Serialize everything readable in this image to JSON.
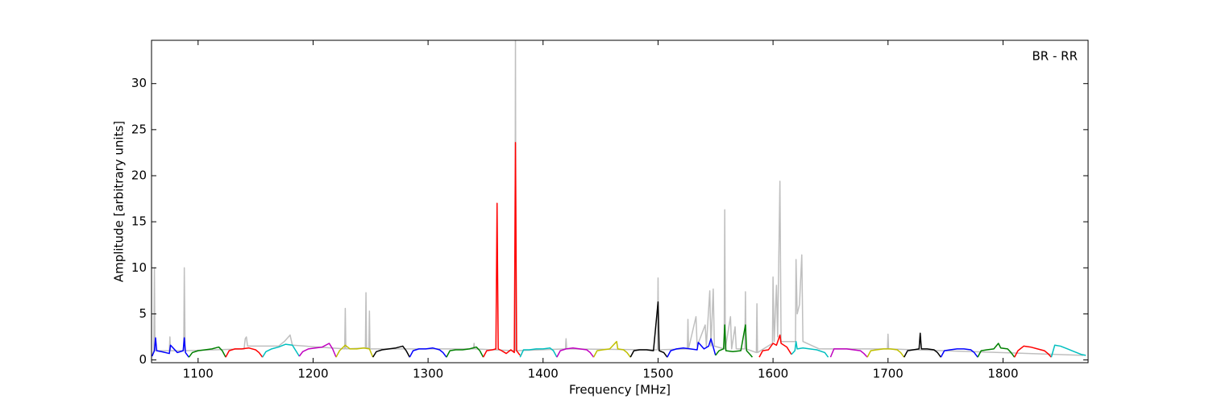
{
  "chart_data": {
    "type": "line",
    "xlabel": "Frequency [MHz]",
    "ylabel": "Amplitude [arbitrary units]",
    "annotation": "BR - RR",
    "xlim": [
      1059.5,
      1874
    ],
    "ylim": [
      -0.3,
      34.7
    ],
    "xticks": [
      1100,
      1200,
      1300,
      1400,
      1500,
      1600,
      1700,
      1800
    ],
    "yticks": [
      0,
      5,
      10,
      15,
      20,
      25,
      30
    ],
    "series": [
      {
        "color": "#bfbfbf",
        "x": [
          1060,
          1061.5,
          1062,
          1062.5,
          1075,
          1075.5,
          1076,
          1087.5,
          1088,
          1088.7,
          1140,
          1141,
          1142,
          1143,
          1170,
          1175,
          1180,
          1182,
          1227.5,
          1228,
          1228.5,
          1245.5,
          1246,
          1246.5,
          1248.5,
          1249,
          1249.5,
          1339.5,
          1340,
          1340.5,
          1375.5,
          1376,
          1376.5,
          1419.5,
          1420,
          1420.5,
          1499.5,
          1500,
          1500.5,
          1525.5,
          1526,
          1526.5,
          1533,
          1534,
          1541,
          1542,
          1545,
          1546,
          1548,
          1549,
          1557.5,
          1558,
          1558.5,
          1563,
          1564,
          1567,
          1568,
          1575.5,
          1576,
          1576.5,
          1585.5,
          1586,
          1586.5,
          1599.5,
          1600,
          1601,
          1603,
          1604,
          1606,
          1607,
          1619.5,
          1620,
          1621,
          1623,
          1625,
          1626,
          1640,
          1699.5,
          1700,
          1700.5,
          1870
        ],
        "values": [
          0.5,
          1.0,
          10,
          1.0,
          1.0,
          2.5,
          1.0,
          1.0,
          10,
          1.0,
          1.2,
          2.3,
          2.5,
          1.5,
          1.5,
          2.0,
          2.7,
          1.6,
          1.2,
          5.6,
          1.2,
          1.3,
          7.3,
          1.3,
          1.3,
          5.3,
          1.2,
          1.2,
          1.8,
          1.2,
          1.0,
          35,
          1.0,
          1.2,
          2.3,
          1.2,
          1.1,
          8.9,
          1.1,
          1.2,
          4.4,
          1.2,
          4.7,
          1.5,
          3.8,
          1.5,
          7.5,
          1.5,
          7.7,
          1.5,
          1.2,
          16.3,
          1.2,
          4.7,
          1.2,
          3.6,
          1.2,
          1.2,
          7.4,
          1.2,
          0.8,
          6.1,
          0.8,
          1.8,
          9.0,
          2,
          8.1,
          2.5,
          19.4,
          2.0,
          2,
          10.9,
          5,
          6,
          11.4,
          2,
          1.2,
          1.2,
          2.8,
          1.2,
          0.5
        ]
      },
      {
        "color": "#0000ff",
        "x": [
          1060,
          1062,
          1063,
          1064,
          1068,
          1075,
          1076,
          1082,
          1087,
          1088,
          1089,
          1092
        ],
        "values": [
          0.4,
          1.0,
          2.4,
          1.0,
          0.9,
          0.7,
          1.6,
          0.8,
          1.0,
          2.4,
          0.8,
          0.3
        ]
      },
      {
        "color": "#008000",
        "x": [
          1092,
          1095,
          1100,
          1106,
          1112,
          1118,
          1121,
          1124
        ],
        "values": [
          0.3,
          0.8,
          1.0,
          1.1,
          1.2,
          1.4,
          1.0,
          0.3
        ]
      },
      {
        "color": "#ff0000",
        "x": [
          1124,
          1127,
          1132,
          1138,
          1144,
          1150,
          1153,
          1156
        ],
        "values": [
          0.3,
          1.0,
          1.2,
          1.2,
          1.3,
          1.1,
          0.8,
          0.3
        ]
      },
      {
        "color": "#00bfbf",
        "x": [
          1156,
          1159,
          1164,
          1170,
          1176,
          1182,
          1185,
          1188
        ],
        "values": [
          0.3,
          0.9,
          1.2,
          1.4,
          1.7,
          1.6,
          1.0,
          0.4
        ]
      },
      {
        "color": "#bf00bf",
        "x": [
          1188,
          1191,
          1196,
          1202,
          1208,
          1214,
          1217,
          1220
        ],
        "values": [
          0.4,
          0.9,
          1.2,
          1.3,
          1.4,
          1.8,
          1.2,
          0.3
        ]
      },
      {
        "color": "#bfbf00",
        "x": [
          1220,
          1223,
          1228,
          1232,
          1238,
          1244,
          1249,
          1252
        ],
        "values": [
          0.3,
          1.0,
          1.6,
          1.2,
          1.2,
          1.3,
          1.2,
          0.3
        ]
      },
      {
        "color": "#000000",
        "x": [
          1252,
          1255,
          1260,
          1266,
          1272,
          1278,
          1281,
          1284
        ],
        "values": [
          0.3,
          0.9,
          1.1,
          1.2,
          1.3,
          1.5,
          1.0,
          0.3
        ]
      },
      {
        "color": "#0000ff",
        "x": [
          1284,
          1287,
          1292,
          1298,
          1304,
          1310,
          1313,
          1316
        ],
        "values": [
          0.3,
          1.0,
          1.2,
          1.2,
          1.3,
          1.1,
          0.8,
          0.3
        ]
      },
      {
        "color": "#008000",
        "x": [
          1316,
          1319,
          1324,
          1330,
          1336,
          1342,
          1345,
          1348
        ],
        "values": [
          0.3,
          1.0,
          1.1,
          1.1,
          1.2,
          1.4,
          1.0,
          0.3
        ]
      },
      {
        "color": "#ff0000",
        "x": [
          1348,
          1351,
          1356,
          1359,
          1360,
          1361,
          1364,
          1368,
          1372,
          1375,
          1376,
          1377,
          1380
        ],
        "values": [
          0.3,
          1.0,
          1.1,
          1.2,
          17.0,
          1.2,
          1.0,
          0.7,
          1.1,
          0.8,
          23.6,
          1.0,
          0.5
        ]
      },
      {
        "color": "#00bfbf",
        "x": [
          1380,
          1383,
          1388,
          1394,
          1400,
          1406,
          1409,
          1412
        ],
        "values": [
          0.3,
          1.1,
          1.1,
          1.2,
          1.2,
          1.3,
          1.0,
          0.3
        ]
      },
      {
        "color": "#bf00bf",
        "x": [
          1412,
          1415,
          1420,
          1426,
          1432,
          1438,
          1441,
          1444
        ],
        "values": [
          0.3,
          1.0,
          1.2,
          1.3,
          1.2,
          1.1,
          0.8,
          0.3
        ]
      },
      {
        "color": "#bfbf00",
        "x": [
          1444,
          1447,
          1452,
          1458,
          1464,
          1465,
          1470,
          1473,
          1476
        ],
        "values": [
          0.3,
          1.0,
          1.1,
          1.2,
          2.0,
          1.2,
          1.1,
          0.8,
          0.3
        ]
      },
      {
        "color": "#000000",
        "x": [
          1476,
          1479,
          1484,
          1490,
          1496,
          1500,
          1501,
          1505,
          1508
        ],
        "values": [
          0.3,
          1.0,
          1.1,
          1.1,
          1.0,
          6.3,
          1.0,
          0.8,
          0.3
        ]
      },
      {
        "color": "#0000ff",
        "x": [
          1508,
          1511,
          1516,
          1522,
          1528,
          1534,
          1535,
          1540,
          1544,
          1546,
          1550
        ],
        "values": [
          0.3,
          1.0,
          1.2,
          1.3,
          1.2,
          1.1,
          1.9,
          1.2,
          1.5,
          2.3,
          0.5
        ]
      },
      {
        "color": "#008000",
        "x": [
          1550,
          1553,
          1557,
          1558,
          1559,
          1565,
          1572,
          1576,
          1577,
          1580,
          1582
        ],
        "values": [
          0.5,
          1.0,
          1.2,
          3.8,
          1.0,
          0.9,
          1.0,
          3.8,
          1.0,
          0.6,
          0.3
        ]
      },
      {
        "color": "#ff0000",
        "x": [
          1588,
          1591,
          1596,
          1600,
          1603,
          1606,
          1607,
          1612,
          1616
        ],
        "values": [
          0.3,
          1.0,
          1.1,
          1.8,
          1.6,
          2.7,
          1.8,
          1.4,
          0.6
        ]
      },
      {
        "color": "#00bfbf",
        "x": [
          1616,
          1619,
          1620,
          1621,
          1626,
          1632,
          1638,
          1645,
          1648
        ],
        "values": [
          0.6,
          1.0,
          2.0,
          1.2,
          1.3,
          1.2,
          1.1,
          0.8,
          0.3
        ]
      },
      {
        "color": "#bf00bf",
        "x": [
          1650,
          1653,
          1658,
          1664,
          1670,
          1676,
          1679,
          1682
        ],
        "values": [
          0.3,
          1.2,
          1.2,
          1.2,
          1.1,
          1.0,
          0.7,
          0.3
        ]
      },
      {
        "color": "#bfbf00",
        "x": [
          1682,
          1685,
          1690,
          1696,
          1702,
          1708,
          1711,
          1714
        ],
        "values": [
          0.3,
          1.0,
          1.1,
          1.2,
          1.2,
          1.1,
          0.8,
          0.3
        ]
      },
      {
        "color": "#000000",
        "x": [
          1714,
          1717,
          1722,
          1727,
          1728,
          1729,
          1734,
          1740,
          1743,
          1746
        ],
        "values": [
          0.3,
          1.0,
          1.1,
          1.2,
          2.9,
          1.2,
          1.2,
          1.1,
          0.8,
          0.3
        ]
      },
      {
        "color": "#0000ff",
        "x": [
          1746,
          1749,
          1754,
          1760,
          1766,
          1772,
          1775,
          1778
        ],
        "values": [
          0.3,
          1.0,
          1.1,
          1.2,
          1.2,
          1.1,
          0.8,
          0.3
        ]
      },
      {
        "color": "#008000",
        "x": [
          1778,
          1781,
          1786,
          1792,
          1796,
          1798,
          1804,
          1807,
          1810
        ],
        "values": [
          0.3,
          1.0,
          1.1,
          1.2,
          1.8,
          1.3,
          1.2,
          0.8,
          0.3
        ]
      },
      {
        "color": "#ff0000",
        "x": [
          1810,
          1813,
          1818,
          1824,
          1830,
          1836,
          1839,
          1842
        ],
        "values": [
          0.3,
          1.0,
          1.5,
          1.4,
          1.2,
          1.0,
          0.7,
          0.3
        ]
      },
      {
        "color": "#00bfbf",
        "x": [
          1842,
          1845,
          1850,
          1856,
          1862,
          1868,
          1872
        ],
        "values": [
          0.3,
          1.6,
          1.5,
          1.2,
          0.9,
          0.6,
          0.5
        ]
      }
    ]
  }
}
